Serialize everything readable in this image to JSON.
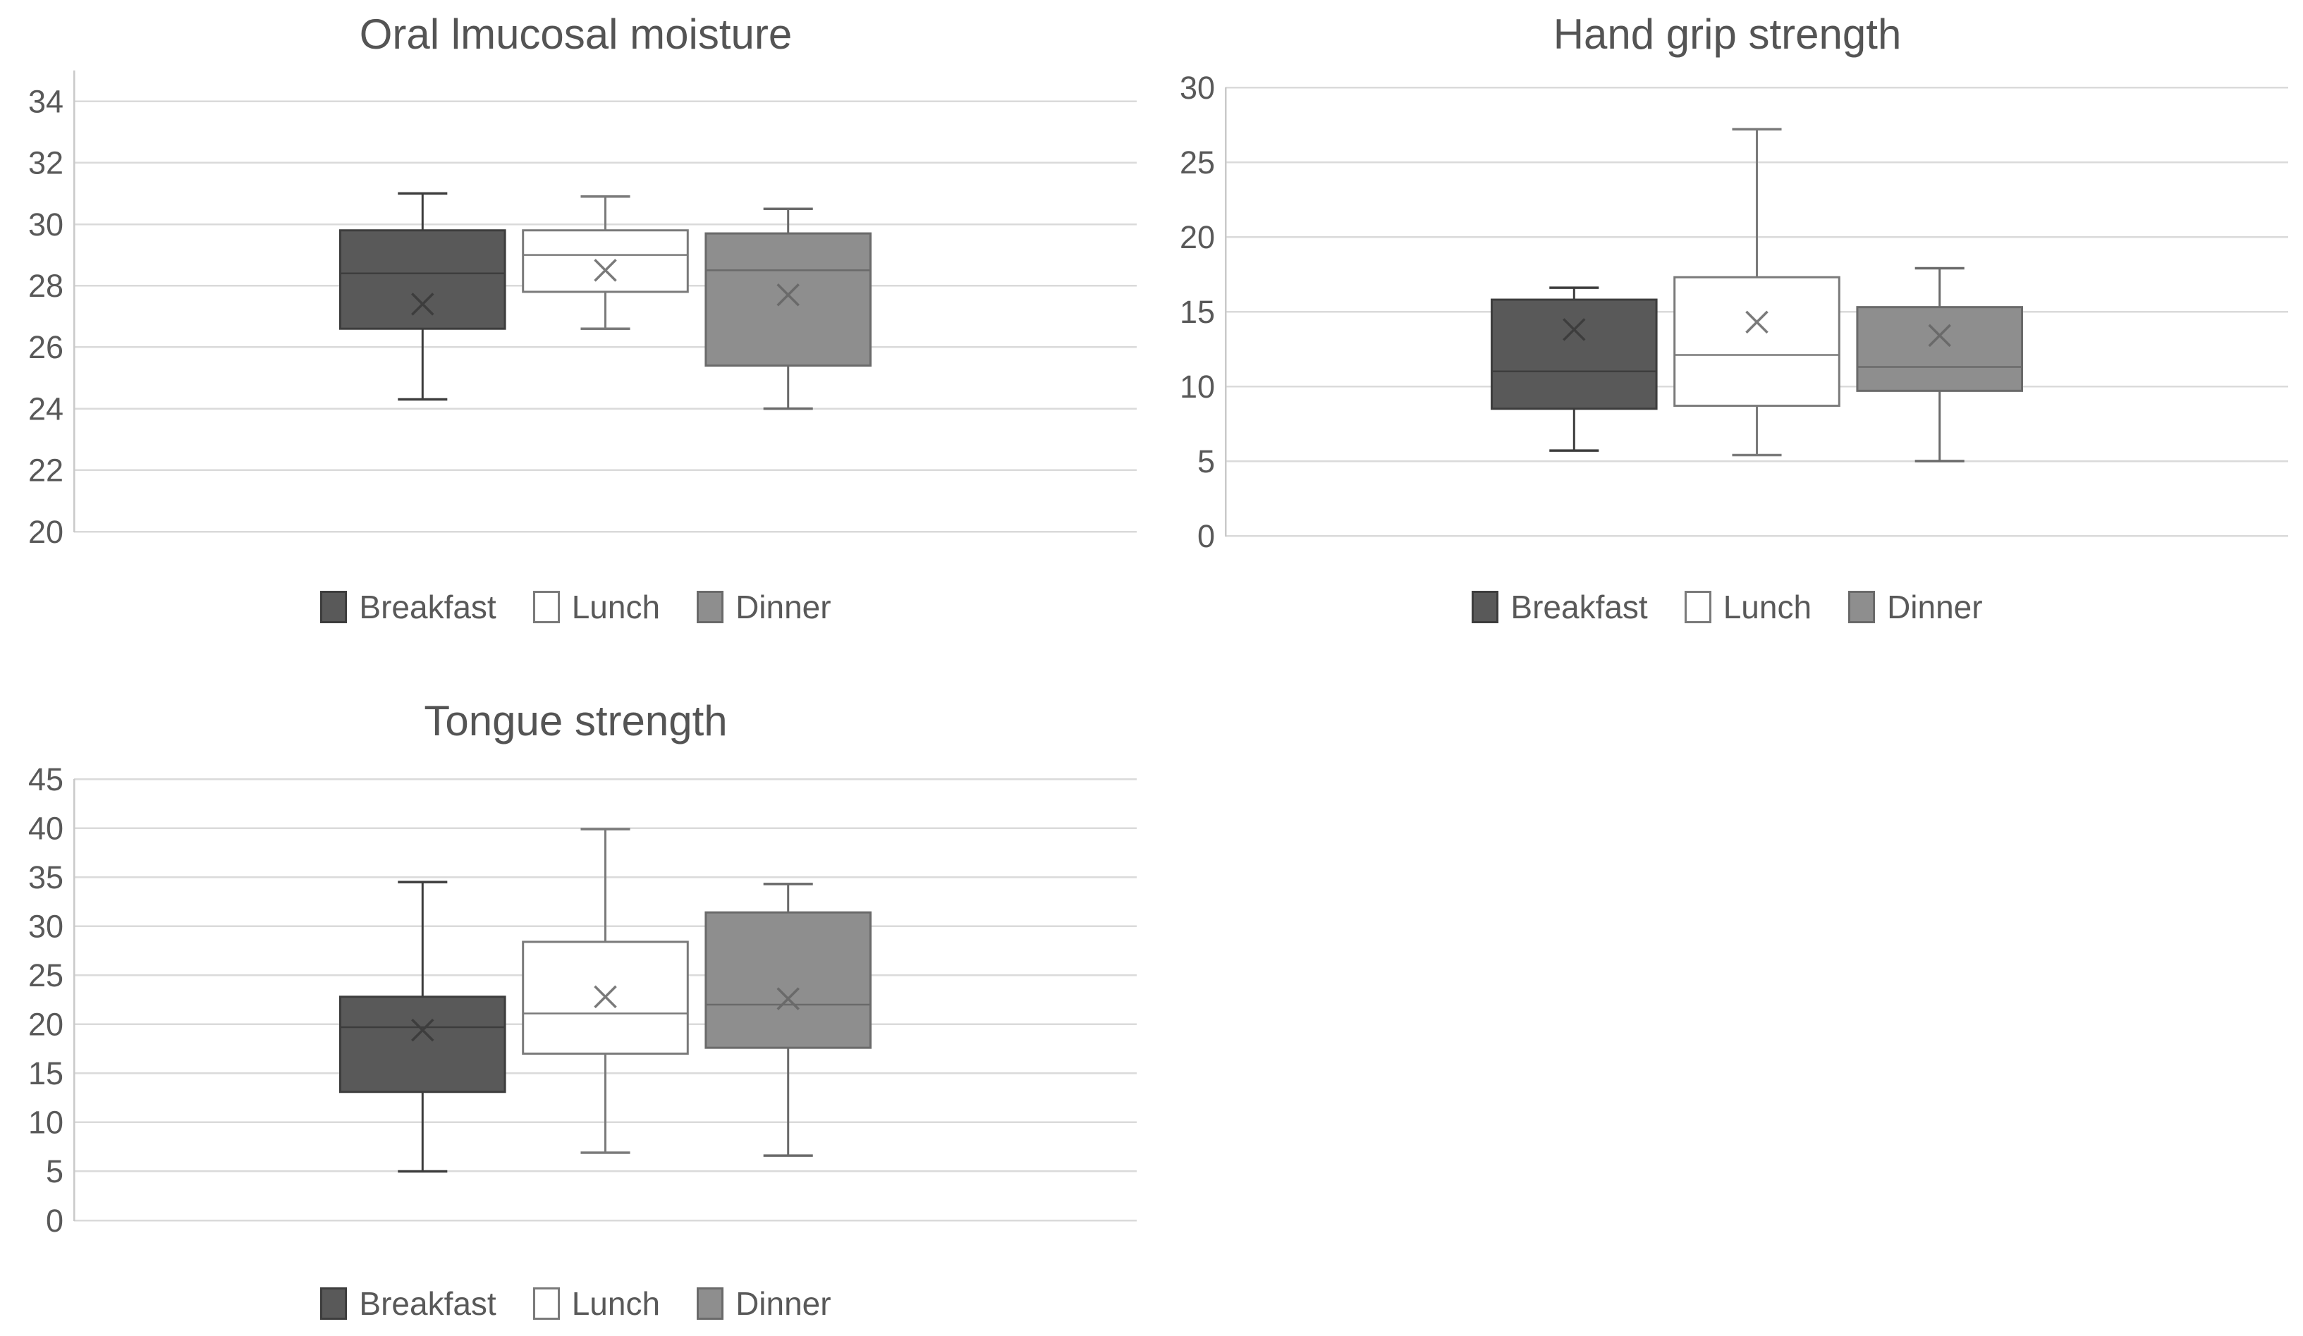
{
  "page": {
    "background": "#ffffff",
    "layout": "2x2 grid, bottom-right cell empty"
  },
  "style": {
    "gridline_color": "#dadada",
    "axis_line_color": "#c9c9c9",
    "tick_text_color": "#595959",
    "title_color": "#545454",
    "legend_text_color": "#595959"
  },
  "legend": {
    "items": [
      {
        "label": "Breakfast",
        "fill": "#595959",
        "stroke": "#3d3d3d"
      },
      {
        "label": "Lunch",
        "fill": "#ffffff",
        "stroke": "#7a7a7a"
      },
      {
        "label": "Dinner",
        "fill": "#8e8e8e",
        "stroke": "#6a6a6a"
      }
    ]
  },
  "chart_data": [
    {
      "type": "box",
      "title": "Oral lmucosal moisture",
      "ylim": [
        20,
        35
      ],
      "yticks": [
        20,
        22,
        24,
        26,
        28,
        30,
        32,
        34
      ],
      "grid": true,
      "legend_position": "bottom",
      "categories": [
        "Breakfast",
        "Lunch",
        "Dinner"
      ],
      "series": [
        {
          "name": "Breakfast",
          "whisker_low": 24.3,
          "q1": 26.6,
          "median": 28.4,
          "q3": 29.8,
          "whisker_high": 31.0,
          "mean": 27.4
        },
        {
          "name": "Lunch",
          "whisker_low": 26.6,
          "q1": 27.8,
          "median": 29.0,
          "q3": 29.8,
          "whisker_high": 30.9,
          "mean": 28.5
        },
        {
          "name": "Dinner",
          "whisker_low": 24.0,
          "q1": 25.4,
          "median": 28.5,
          "q3": 29.7,
          "whisker_high": 30.5,
          "mean": 27.7
        }
      ]
    },
    {
      "type": "box",
      "title": "Hand grip strength",
      "ylim": [
        0,
        30
      ],
      "yticks": [
        0,
        5,
        10,
        15,
        20,
        25,
        30
      ],
      "grid": true,
      "legend_position": "bottom",
      "categories": [
        "Breakfast",
        "Lunch",
        "Dinner"
      ],
      "series": [
        {
          "name": "Breakfast",
          "whisker_low": 5.7,
          "q1": 8.5,
          "median": 11.0,
          "q3": 15.8,
          "whisker_high": 16.6,
          "mean": 13.8
        },
        {
          "name": "Lunch",
          "whisker_low": 5.4,
          "q1": 8.7,
          "median": 12.1,
          "q3": 17.3,
          "whisker_high": 27.2,
          "mean": 14.3
        },
        {
          "name": "Dinner",
          "whisker_low": 5.0,
          "q1": 9.7,
          "median": 11.3,
          "q3": 15.3,
          "whisker_high": 17.9,
          "mean": 13.4
        }
      ]
    },
    {
      "type": "box",
      "title": "Tongue strength",
      "ylim": [
        0,
        45
      ],
      "yticks": [
        0,
        5,
        10,
        15,
        20,
        25,
        30,
        35,
        40,
        45
      ],
      "grid": true,
      "legend_position": "bottom",
      "categories": [
        "Breakfast",
        "Lunch",
        "Dinner"
      ],
      "series": [
        {
          "name": "Breakfast",
          "whisker_low": 5.0,
          "q1": 13.1,
          "median": 19.7,
          "q3": 22.8,
          "whisker_high": 34.5,
          "mean": 19.4
        },
        {
          "name": "Lunch",
          "whisker_low": 6.9,
          "q1": 17.0,
          "median": 21.1,
          "q3": 28.4,
          "whisker_high": 39.9,
          "mean": 22.8
        },
        {
          "name": "Dinner",
          "whisker_low": 6.6,
          "q1": 17.6,
          "median": 22.0,
          "q3": 31.4,
          "whisker_high": 34.3,
          "mean": 22.6
        }
      ]
    }
  ]
}
